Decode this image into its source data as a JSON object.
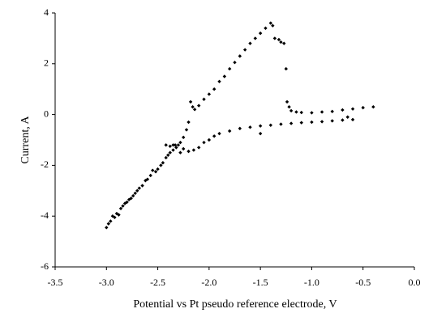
{
  "chart_data": {
    "type": "scatter",
    "y_label": "Current, A",
    "x_label": "Potential vs Pt pseudo reference electrode, V",
    "color": "#000000",
    "xlim": [
      -3.5,
      0
    ],
    "ylim": [
      -6,
      4
    ],
    "xticks": [
      -3.5,
      {
        "value": -3,
        "label": "-3.0"
      },
      -2.5,
      {
        "value": -2,
        "label": "-2.0"
      },
      -1.5,
      {
        "value": -1,
        "label": "-1.0"
      },
      -0.5,
      {
        "value": 0,
        "label": "0.0"
      }
    ],
    "yticks": [
      -6,
      -4,
      -2,
      0,
      2,
      4
    ],
    "x": [
      -3.0,
      -2.98,
      -2.96,
      -2.94,
      -2.92,
      -2.9,
      -2.88,
      -2.86,
      -2.84,
      -2.82,
      -2.8,
      -2.78,
      -2.76,
      -2.74,
      -2.72,
      -2.7,
      -2.68,
      -2.65,
      -2.62,
      -2.6,
      -2.57,
      -2.55,
      -2.52,
      -2.5,
      -2.47,
      -2.45,
      -2.42,
      -2.4,
      -2.38,
      -2.35,
      -2.32,
      -2.3,
      -2.42,
      -2.38,
      -2.35,
      -2.33,
      -2.28,
      -2.25,
      -2.22,
      -2.2,
      -2.18,
      -2.16,
      -2.14,
      -2.1,
      -2.05,
      -2.0,
      -1.95,
      -1.9,
      -1.85,
      -1.8,
      -1.75,
      -1.7,
      -1.65,
      -1.6,
      -1.55,
      -1.5,
      -1.45,
      -1.4,
      -1.38,
      -1.36,
      -1.32,
      -1.3,
      -1.27,
      -1.25,
      -1.24,
      -1.22,
      -1.2,
      -1.15,
      -1.1,
      -1.0,
      -0.9,
      -0.8,
      -0.7,
      -0.6,
      -0.5,
      -0.4,
      -0.6,
      -0.65,
      -0.7,
      -0.8,
      -0.9,
      -1.0,
      -1.1,
      -1.2,
      -1.3,
      -1.4,
      -1.5,
      -1.5,
      -1.6,
      -1.7,
      -1.8,
      -1.9,
      -1.95,
      -2.0,
      -2.05,
      -2.1,
      -2.15,
      -2.2,
      -2.25,
      -2.28
    ],
    "values": [
      -4.45,
      -4.3,
      -4.2,
      -4.0,
      -4.05,
      -3.9,
      -3.95,
      -3.7,
      -3.6,
      -3.5,
      -3.45,
      -3.35,
      -3.3,
      -3.2,
      -3.1,
      -3.0,
      -2.9,
      -2.8,
      -2.6,
      -2.55,
      -2.4,
      -2.2,
      -2.25,
      -2.15,
      -2.0,
      -1.9,
      -1.7,
      -1.6,
      -1.5,
      -1.4,
      -1.3,
      -1.2,
      -1.2,
      -1.25,
      -1.2,
      -1.2,
      -1.1,
      -0.9,
      -0.6,
      -0.3,
      0.5,
      0.3,
      0.2,
      0.35,
      0.6,
      0.8,
      1.0,
      1.3,
      1.5,
      1.8,
      2.05,
      2.3,
      2.55,
      2.8,
      3.0,
      3.2,
      3.4,
      3.6,
      3.5,
      3.0,
      2.95,
      2.85,
      2.8,
      1.8,
      0.5,
      0.3,
      0.15,
      0.1,
      0.08,
      0.07,
      0.1,
      0.12,
      0.18,
      0.22,
      0.27,
      0.3,
      -0.2,
      -0.1,
      -0.22,
      -0.25,
      -0.28,
      -0.3,
      -0.32,
      -0.35,
      -0.38,
      -0.42,
      -0.45,
      -0.75,
      -0.5,
      -0.55,
      -0.65,
      -0.75,
      -0.85,
      -1.0,
      -1.1,
      -1.3,
      -1.4,
      -1.45,
      -1.35,
      -1.5
    ]
  }
}
